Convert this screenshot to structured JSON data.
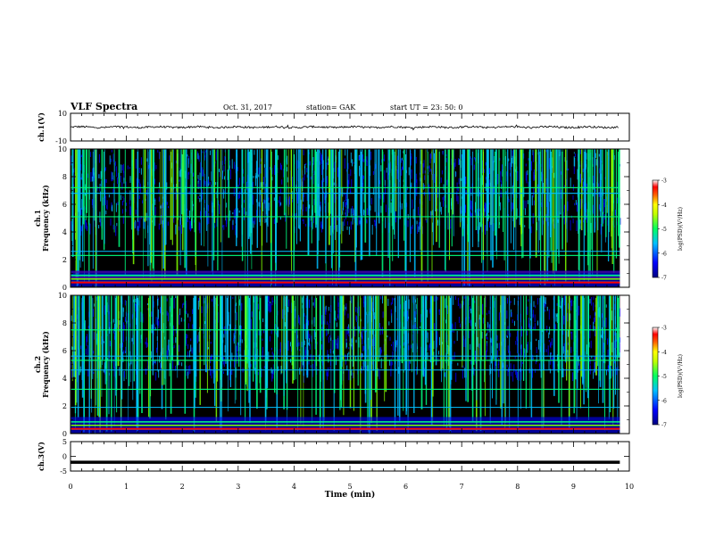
{
  "header": {
    "title": "VLF Spectra",
    "date": "Oct. 31, 2017",
    "station": "station= GAK",
    "start": "start  UT =   23: 50: 0"
  },
  "chart_data": [
    {
      "type": "line",
      "panel": "ch1-waveform",
      "ylabel": "ch.1(V)",
      "ylim": [
        -10,
        10
      ],
      "yticks": [
        "10",
        "-10"
      ],
      "x_range_min": [
        0,
        10
      ],
      "description_values": {
        "mean_level": 0.0,
        "approx_amplitude": 1.0
      }
    },
    {
      "type": "heatmap",
      "panel": "ch1-spectrogram",
      "ylabel": "ch.1\nFrequency  (kHz)",
      "ylabel_lines": [
        "ch.1",
        "Frequency  (kHz)"
      ],
      "ylim": [
        0,
        10
      ],
      "yticks": [
        "0",
        "2",
        "4",
        "6",
        "8",
        "10"
      ],
      "colorbar": {
        "label": "log(PSD)(V²/Hz)",
        "range": [
          -7,
          -3
        ],
        "ticks": [
          "-3",
          "-4",
          "-5",
          "-6",
          "-7"
        ]
      },
      "bands_khz": [
        0.4,
        0.7,
        0.9,
        1.1,
        2.3,
        2.6,
        5.1,
        6.8,
        7.2
      ]
    },
    {
      "type": "heatmap",
      "panel": "ch2-spectrogram",
      "ylabel": "ch.2\nFrequency  (kHz)",
      "ylabel_lines": [
        "ch.2",
        "Frequency  (kHz)"
      ],
      "ylim": [
        0,
        10
      ],
      "yticks": [
        "0",
        "2",
        "4",
        "6",
        "8",
        "10"
      ],
      "colorbar": {
        "label": "log(PSD)(V²/Hz)",
        "range": [
          -7,
          -3
        ],
        "ticks": [
          "-3",
          "-4",
          "-5",
          "-6",
          "-7"
        ]
      },
      "bands_khz": [
        0.3,
        1.9,
        3.2,
        4.6,
        5.3,
        5.6,
        7.5
      ]
    },
    {
      "type": "line",
      "panel": "ch3-waveform",
      "ylabel": "ch.3(V)",
      "ylim": [
        -5,
        5
      ],
      "yticks": [
        "5",
        "0",
        "-5"
      ],
      "constant_value": -2
    }
  ],
  "xaxis": {
    "label": "Time  (min)",
    "ticks": [
      "0",
      "1",
      "2",
      "3",
      "4",
      "5",
      "6",
      "7",
      "8",
      "9",
      "10"
    ],
    "range": [
      0,
      10
    ]
  },
  "colors": {
    "background": "#000000",
    "colormap": [
      "#000080",
      "#0000ff",
      "#00bfff",
      "#00ff80",
      "#80ff00",
      "#ffff00",
      "#ff8000",
      "#ff0000",
      "#ffffff"
    ]
  }
}
